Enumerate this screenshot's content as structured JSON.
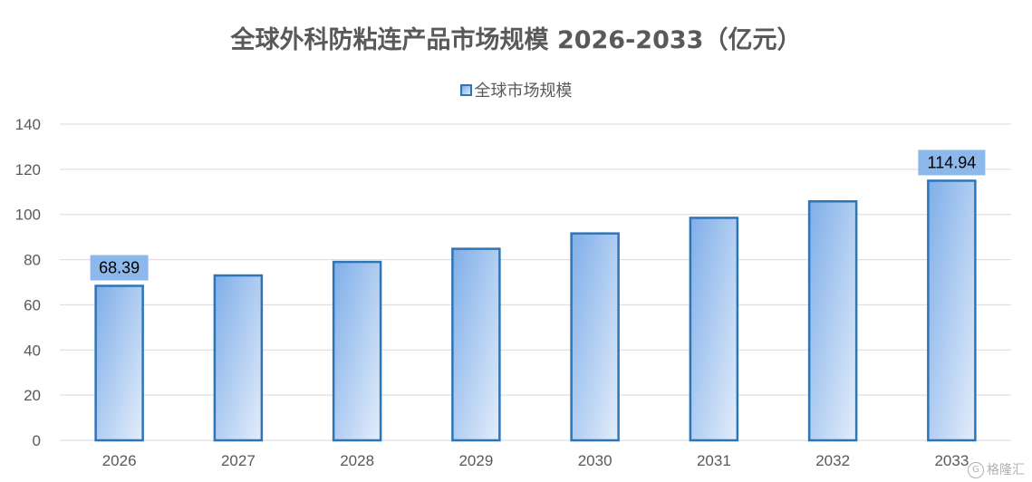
{
  "colors": {
    "bar_fill_start": "#7FAEE8",
    "bar_fill_end": "#E3EDFB",
    "bar_border": "#2E75B6",
    "label_bg": "#8DB8EC",
    "grid": "#D9D9D9",
    "text": "#595959"
  },
  "chart_data": {
    "type": "bar",
    "title": "全球外科防粘连产品市场规模 2026-2033（亿元）",
    "xlabel": "",
    "ylabel": "",
    "categories": [
      "2026",
      "2027",
      "2028",
      "2029",
      "2030",
      "2031",
      "2032",
      "2033"
    ],
    "series": [
      {
        "name": "全球市场规模",
        "values": [
          68.39,
          73.0,
          79.0,
          84.8,
          91.6,
          98.5,
          105.8,
          114.94
        ]
      }
    ],
    "data_labels": [
      {
        "category": "2026",
        "text": "68.39"
      },
      {
        "category": "2033",
        "text": "114.94"
      }
    ],
    "ylim": [
      0,
      140
    ],
    "yticks": [
      0,
      20,
      40,
      60,
      80,
      100,
      120,
      140
    ],
    "grid": true,
    "legend_position": "top-center"
  },
  "watermark": {
    "icon": "gelonghui-logo-icon",
    "text": "格隆汇"
  }
}
